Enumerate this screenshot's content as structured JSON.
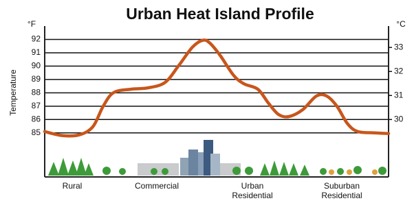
{
  "chart_data": {
    "type": "line",
    "title": "Urban Heat Island Profile",
    "y_unit_label": "°F",
    "y2_unit_label": "°C",
    "y_label": "Temperature",
    "region_labels": [
      "Rural",
      "Commercial",
      "Urban\nResidential",
      "Suburban\nResidential"
    ],
    "x": [
      0,
      5,
      10,
      14,
      17,
      20,
      25,
      30,
      35,
      39,
      43,
      46,
      48,
      51,
      55,
      58,
      62,
      65,
      68,
      71,
      75,
      79,
      82,
      85,
      88,
      91,
      96,
      100
    ],
    "xlim": [
      0,
      100
    ],
    "series": [
      {
        "color": "#c8561b",
        "values": [
          85.1,
          84.8,
          84.85,
          85.46,
          86.99,
          88.01,
          88.27,
          88.37,
          88.78,
          90.05,
          91.43,
          91.94,
          91.73,
          90.81,
          89.29,
          88.67,
          88.27,
          87.25,
          86.38,
          86.22,
          86.73,
          87.76,
          87.76,
          86.99,
          85.71,
          85.1,
          85,
          84.95
        ]
      }
    ],
    "ylim": [
      81.7,
      93
    ],
    "yticks": [
      85,
      86,
      87,
      88,
      89,
      90,
      91,
      92
    ],
    "y2lim": [
      27.61,
      33.89
    ],
    "y2ticks": [
      30,
      31,
      32,
      33
    ],
    "grid": true
  }
}
